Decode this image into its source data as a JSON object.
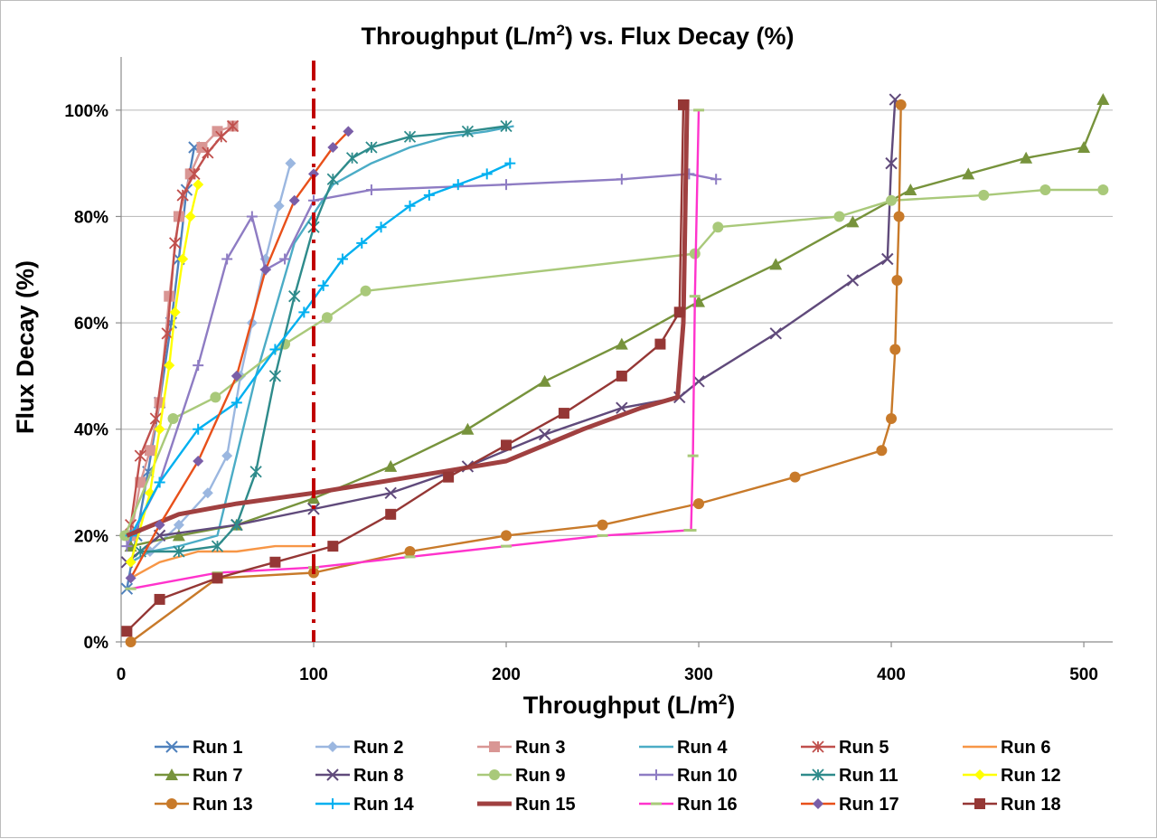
{
  "chart_data": {
    "type": "line",
    "title": "Throughput (L/m",
    "title_sup": "2",
    "title_rest": ") vs. Flux Decay (%)",
    "xlabel": "Throughput (L/m",
    "xlabel_sup": "2",
    "xlabel_rest": ")",
    "ylabel": "Flux Decay (%)",
    "xlim": [
      0,
      515
    ],
    "ylim": [
      0,
      1.1
    ],
    "x_ticks": [
      0,
      100,
      200,
      300,
      400,
      500
    ],
    "x_tick_labels": [
      "0",
      "100",
      "200",
      "300",
      "400",
      "500"
    ],
    "y_ticks": [
      0,
      0.2,
      0.4,
      0.6,
      0.8,
      1.0
    ],
    "y_tick_labels": [
      "0%",
      "20%",
      "40%",
      "60%",
      "80%",
      "100%"
    ],
    "grid": "horizontal",
    "legend_position": "bottom",
    "reference_line": {
      "x": 100,
      "color": "#c00000",
      "style": "dash-dot"
    },
    "series": [
      {
        "name": "Run 1",
        "color": "#4f81bd",
        "marker": "x",
        "x": [
          3,
          8,
          14,
          20,
          26,
          30,
          34,
          38
        ],
        "y": [
          0.1,
          0.2,
          0.32,
          0.45,
          0.6,
          0.72,
          0.85,
          0.93
        ]
      },
      {
        "name": "Run 2",
        "color": "#9bb7e0",
        "marker": "diamond",
        "x": [
          5,
          15,
          30,
          45,
          55,
          62,
          68,
          75,
          82,
          88
        ],
        "y": [
          0.15,
          0.17,
          0.22,
          0.28,
          0.35,
          0.5,
          0.6,
          0.72,
          0.82,
          0.9
        ]
      },
      {
        "name": "Run 3",
        "color": "#d99694",
        "marker": "square",
        "x": [
          5,
          10,
          15,
          20,
          25,
          30,
          36,
          42,
          50,
          58
        ],
        "y": [
          0.2,
          0.3,
          0.36,
          0.45,
          0.65,
          0.8,
          0.88,
          0.93,
          0.96,
          0.97
        ]
      },
      {
        "name": "Run 4",
        "color": "#4bacc6",
        "marker": "none",
        "x": [
          5,
          15,
          30,
          50,
          70,
          90,
          110,
          130,
          150,
          170,
          190,
          204
        ],
        "y": [
          0.15,
          0.17,
          0.18,
          0.2,
          0.5,
          0.75,
          0.86,
          0.9,
          0.93,
          0.95,
          0.96,
          0.97
        ]
      },
      {
        "name": "Run 5",
        "color": "#c0504d",
        "marker": "asterisk",
        "x": [
          5,
          10,
          18,
          24,
          28,
          32,
          38,
          45,
          52,
          58
        ],
        "y": [
          0.22,
          0.35,
          0.42,
          0.58,
          0.75,
          0.84,
          0.88,
          0.92,
          0.95,
          0.97
        ]
      },
      {
        "name": "Run 6",
        "color": "#f79646",
        "marker": "none",
        "x": [
          5,
          20,
          40,
          60,
          80,
          100
        ],
        "y": [
          0.12,
          0.15,
          0.17,
          0.17,
          0.18,
          0.18
        ]
      },
      {
        "name": "Run 7",
        "color": "#77933c",
        "marker": "triangle",
        "x": [
          5,
          30,
          60,
          100,
          140,
          180,
          220,
          260,
          300,
          340,
          380,
          410,
          440,
          470,
          500,
          510
        ],
        "y": [
          0.18,
          0.2,
          0.22,
          0.27,
          0.33,
          0.4,
          0.49,
          0.56,
          0.64,
          0.71,
          0.79,
          0.85,
          0.88,
          0.91,
          0.93,
          1.02
        ]
      },
      {
        "name": "Run 8",
        "color": "#604a7b",
        "marker": "x",
        "x": [
          3,
          20,
          60,
          100,
          140,
          180,
          220,
          260,
          290,
          300,
          340,
          380,
          398,
          400,
          402
        ],
        "y": [
          0.15,
          0.2,
          0.22,
          0.25,
          0.28,
          0.33,
          0.39,
          0.44,
          0.46,
          0.49,
          0.58,
          0.68,
          0.72,
          0.9,
          1.02
        ]
      },
      {
        "name": "Run 9",
        "color": "#a9c97a",
        "marker": "circle",
        "x": [
          2,
          27,
          49,
          85,
          107,
          127,
          298,
          310,
          373,
          400,
          448,
          480,
          510
        ],
        "y": [
          0.2,
          0.42,
          0.46,
          0.56,
          0.61,
          0.66,
          0.73,
          0.78,
          0.8,
          0.83,
          0.84,
          0.85,
          0.85
        ]
      },
      {
        "name": "Run 10",
        "color": "#8e7cc3",
        "marker": "plus",
        "x": [
          3,
          20,
          40,
          55,
          68,
          75,
          85,
          100,
          130,
          200,
          260,
          295,
          309
        ],
        "y": [
          0.18,
          0.3,
          0.52,
          0.72,
          0.8,
          0.7,
          0.72,
          0.83,
          0.85,
          0.86,
          0.87,
          0.88,
          0.87
        ]
      },
      {
        "name": "Run 11",
        "color": "#2e8b8b",
        "marker": "asterisk",
        "x": [
          10,
          30,
          50,
          60,
          70,
          80,
          90,
          100,
          110,
          120,
          130,
          150,
          180,
          200
        ],
        "y": [
          0.17,
          0.17,
          0.18,
          0.22,
          0.32,
          0.5,
          0.65,
          0.78,
          0.87,
          0.91,
          0.93,
          0.95,
          0.96,
          0.97
        ]
      },
      {
        "name": "Run 12",
        "color": "#ffff00",
        "marker": "diamond",
        "x": [
          5,
          15,
          20,
          25,
          28,
          32,
          36,
          40
        ],
        "y": [
          0.15,
          0.28,
          0.4,
          0.52,
          0.62,
          0.72,
          0.8,
          0.86
        ]
      },
      {
        "name": "Run 13",
        "color": "#c87a2a",
        "marker": "circle",
        "x": [
          5,
          50,
          100,
          150,
          200,
          250,
          300,
          350,
          395,
          400,
          402,
          403,
          404,
          405
        ],
        "y": [
          0.0,
          0.12,
          0.13,
          0.17,
          0.2,
          0.22,
          0.26,
          0.31,
          0.36,
          0.42,
          0.55,
          0.68,
          0.8,
          1.01
        ]
      },
      {
        "name": "Run 14",
        "color": "#00b0f0",
        "marker": "plus",
        "x": [
          5,
          20,
          40,
          60,
          80,
          95,
          105,
          115,
          125,
          135,
          150,
          160,
          175,
          190,
          202
        ],
        "y": [
          0.2,
          0.3,
          0.4,
          0.45,
          0.55,
          0.62,
          0.67,
          0.72,
          0.75,
          0.78,
          0.82,
          0.84,
          0.86,
          0.88,
          0.9
        ]
      },
      {
        "name": "Run 15",
        "color": "#a04040",
        "marker": "none",
        "x": [
          3,
          30,
          60,
          100,
          150,
          200,
          240,
          270,
          289,
          292,
          294
        ],
        "y": [
          0.2,
          0.24,
          0.26,
          0.28,
          0.31,
          0.34,
          0.4,
          0.44,
          0.46,
          0.6,
          1.02
        ]
      },
      {
        "name": "Run 16",
        "color": "#ff33cc",
        "marker": "hline",
        "x": [
          5,
          50,
          100,
          150,
          200,
          250,
          295,
          296,
          297,
          298,
          300
        ],
        "y": [
          0.1,
          0.13,
          0.14,
          0.16,
          0.18,
          0.2,
          0.21,
          0.21,
          0.35,
          0.65,
          1.0
        ]
      },
      {
        "name": "Run 17",
        "color": "#e8501a",
        "marker": "diamond-purple",
        "x": [
          5,
          20,
          40,
          60,
          75,
          90,
          100,
          110,
          118
        ],
        "y": [
          0.12,
          0.22,
          0.34,
          0.5,
          0.7,
          0.83,
          0.88,
          0.93,
          0.96
        ]
      },
      {
        "name": "Run 18",
        "color": "#953735",
        "marker": "square",
        "x": [
          3,
          20,
          50,
          80,
          110,
          140,
          170,
          200,
          230,
          260,
          280,
          290,
          292
        ],
        "y": [
          0.02,
          0.08,
          0.12,
          0.15,
          0.18,
          0.24,
          0.31,
          0.37,
          0.43,
          0.5,
          0.56,
          0.62,
          1.01
        ]
      }
    ]
  }
}
